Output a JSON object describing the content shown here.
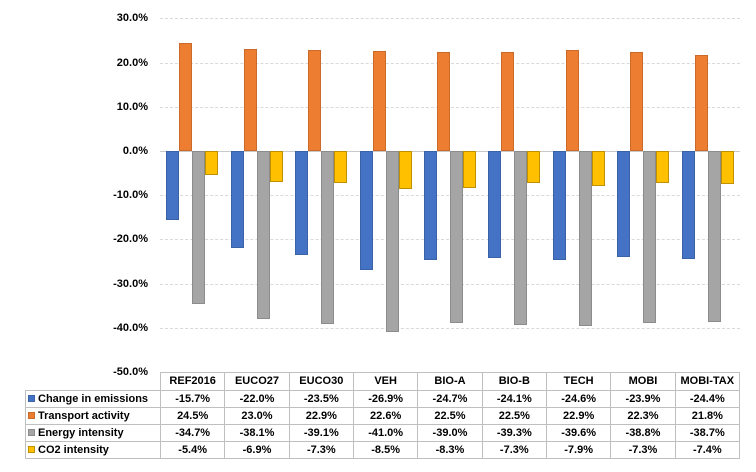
{
  "chart_data": {
    "type": "bar",
    "title": "",
    "xlabel": "",
    "ylabel": "",
    "categories": [
      "REF2016",
      "EUCO27",
      "EUCO30",
      "VEH",
      "BIO-A",
      "BIO-B",
      "TECH",
      "MOBI",
      "MOBI-TAX"
    ],
    "series": [
      {
        "name": "Change in emissions",
        "color": "#4472C4",
        "border_color": "#3A62A7",
        "values": [
          -15.7,
          -22.0,
          -23.5,
          -26.9,
          -24.7,
          -24.1,
          -24.6,
          -23.9,
          -24.4
        ],
        "display": [
          "-15.7%",
          "-22.0%",
          "-23.5%",
          "-26.9%",
          "-24.7%",
          "-24.1%",
          "-24.6%",
          "-23.9%",
          "-24.4%"
        ]
      },
      {
        "name": "Transport activity",
        "color": "#ED7D31",
        "border_color": "#C96A2A",
        "values": [
          24.5,
          23.0,
          22.9,
          22.6,
          22.5,
          22.5,
          22.9,
          22.3,
          21.8
        ],
        "display": [
          "24.5%",
          "23.0%",
          "22.9%",
          "22.6%",
          "22.5%",
          "22.5%",
          "22.9%",
          "22.3%",
          "21.8%"
        ]
      },
      {
        "name": "Energy intensity",
        "color": "#A5A5A5",
        "border_color": "#8C8C8C",
        "values": [
          -34.7,
          -38.1,
          -39.1,
          -41.0,
          -39.0,
          -39.3,
          -39.6,
          -38.8,
          -38.7
        ],
        "display": [
          "-34.7%",
          "-38.1%",
          "-39.1%",
          "-41.0%",
          "-39.0%",
          "-39.3%",
          "-39.6%",
          "-38.8%",
          "-38.7%"
        ]
      },
      {
        "name": "CO2 intensity",
        "color": "#FFC000",
        "border_color": "#BF9000",
        "values": [
          -5.4,
          -6.9,
          -7.3,
          -8.5,
          -8.3,
          -7.3,
          -7.9,
          -7.3,
          -7.4
        ],
        "display": [
          "-5.4%",
          "-6.9%",
          "-7.3%",
          "-8.5%",
          "-8.3%",
          "-7.3%",
          "-7.9%",
          "-7.3%",
          "-7.4%"
        ]
      }
    ],
    "y_axis": {
      "min": -50,
      "max": 30,
      "step": 10,
      "tick_labels": [
        "30.0%",
        "20.0%",
        "10.0%",
        "0.0%",
        "-10.0%",
        "-20.0%",
        "-30.0%",
        "-40.0%",
        "-50.0%"
      ],
      "tick_values": [
        30,
        20,
        10,
        0,
        -10,
        -20,
        -30,
        -40,
        -50
      ]
    },
    "grid": true,
    "gridline_style": "dashed",
    "legend_position": "data-table",
    "colors": {
      "background": "#ffffff",
      "gridline": "#d9d9d9",
      "zero_axis_line": "#c9c9c9",
      "table_border": "#bfbfbf",
      "text": "#000000"
    }
  }
}
